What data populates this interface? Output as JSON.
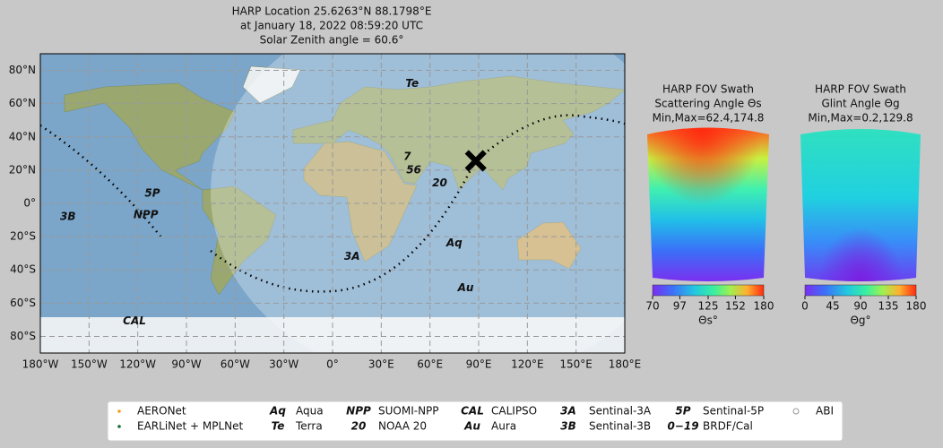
{
  "title": [
    "HARP Location 25.6263°N 88.1798°E",
    "at January 18, 2022 08:59:20 UTC",
    "Solar Zenith angle = 60.6°"
  ],
  "map": {
    "xlim": [
      -180,
      180
    ],
    "ylim": [
      -90,
      90
    ],
    "xticks": [
      {
        "value": -180,
        "label": "180°W"
      },
      {
        "value": -150,
        "label": "150°W"
      },
      {
        "value": -120,
        "label": "120°W"
      },
      {
        "value": -90,
        "label": "90°W"
      },
      {
        "value": -60,
        "label": "60°W"
      },
      {
        "value": -30,
        "label": "30°W"
      },
      {
        "value": 0,
        "label": "0°"
      },
      {
        "value": 30,
        "label": "30°E"
      },
      {
        "value": 60,
        "label": "60°E"
      },
      {
        "value": 90,
        "label": "90°E"
      },
      {
        "value": 120,
        "label": "120°E"
      },
      {
        "value": 150,
        "label": "150°E"
      },
      {
        "value": 180,
        "label": "180°E"
      }
    ],
    "yticks": [
      {
        "value": -80,
        "label": "80°S"
      },
      {
        "value": -60,
        "label": "60°S"
      },
      {
        "value": -40,
        "label": "40°S"
      },
      {
        "value": -20,
        "label": "20°S"
      },
      {
        "value": 0,
        "label": "0°"
      },
      {
        "value": 20,
        "label": "20°N"
      },
      {
        "value": 40,
        "label": "40°N"
      },
      {
        "value": 60,
        "label": "60°N"
      },
      {
        "value": 80,
        "label": "80°N"
      }
    ],
    "harp_marker": {
      "lon": 88.1798,
      "lat": 25.6263
    },
    "labels": [
      {
        "text": "Te",
        "lon": 49,
        "lat": 72,
        "color": "#d02020"
      },
      {
        "text": "5P",
        "lon": -111,
        "lat": 6,
        "color": "#e8207a"
      },
      {
        "text": "3B",
        "lon": -163,
        "lat": -8,
        "color": "#f06020"
      },
      {
        "text": "NPP",
        "lon": -115,
        "lat": -7,
        "color": "#8020a0"
      },
      {
        "text": "20",
        "lon": 66,
        "lat": 12,
        "color": "#106030"
      },
      {
        "text": "Aq",
        "lon": 75,
        "lat": -24,
        "color": "#1a1a8a"
      },
      {
        "text": "3A",
        "lon": 12,
        "lat": -32,
        "color": "#f0a010"
      },
      {
        "text": "Au",
        "lon": 82,
        "lat": -51,
        "color": "#6a1010"
      },
      {
        "text": "CAL",
        "lon": -122,
        "lat": -71,
        "color": "#f04040"
      },
      {
        "text": "7",
        "lon": 46,
        "lat": 28,
        "color": "#9a90f0"
      },
      {
        "text": "56",
        "lon": 50,
        "lat": 20,
        "color": "#9a90f0"
      }
    ]
  },
  "panels": [
    {
      "title": [
        "HARP FOV Swath",
        "Scattering Angle Θs",
        "Min,Max=62.4,174.8"
      ],
      "lim": [
        70,
        180
      ],
      "ticks": [
        70,
        97,
        125,
        152,
        180
      ],
      "label": "Θs°"
    },
    {
      "title": [
        "HARP FOV Swath",
        "Glint Angle Θg",
        "Min,Max=0.2,129.8"
      ],
      "lim": [
        0,
        180
      ],
      "ticks": [
        0,
        45,
        90,
        135,
        180
      ],
      "label": "Θg°"
    }
  ],
  "legend": [
    {
      "marker": "dot",
      "color": "#f0a020",
      "label": "AERONet"
    },
    {
      "marker": "dot",
      "color": "#107030",
      "label": "EARLiNet + MPLNet"
    },
    {
      "symbol": "Aq",
      "color": "#1a1a8a",
      "label": "Aqua"
    },
    {
      "symbol": "Te",
      "color": "#d02020",
      "label": "Terra"
    },
    {
      "symbol": "NPP",
      "color": "#8020a0",
      "label": "SUOMI-NPP"
    },
    {
      "symbol": "20",
      "color": "#106030",
      "label": "NOAA 20"
    },
    {
      "symbol": "CAL",
      "color": "#f04040",
      "label": "CALIPSO"
    },
    {
      "symbol": "Au",
      "color": "#6a1010",
      "label": "Aura"
    },
    {
      "symbol": "3A",
      "color": "#f0a010",
      "label": "Sentinal-3A"
    },
    {
      "symbol": "3B",
      "color": "#f06020",
      "label": "Sentinal-3B"
    },
    {
      "symbol": "5P",
      "color": "#e8207a",
      "label": "Sentinal-5P"
    },
    {
      "symbol": "0−19",
      "color": "#9a90f0",
      "label": "BRDF/Cal"
    },
    {
      "marker": "circle",
      "color": "#9a9a9a",
      "label": "ABI"
    }
  ]
}
